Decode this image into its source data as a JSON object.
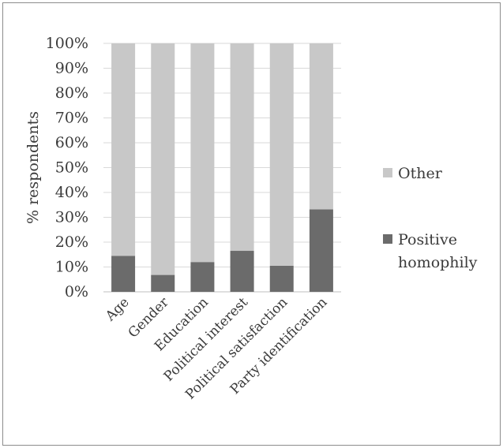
{
  "chart_data": {
    "type": "bar",
    "stacked": true,
    "percent_stacked": true,
    "categories": [
      "Age",
      "Gender",
      "Education",
      "Political interest",
      "Political satisfaction",
      "Party identification"
    ],
    "series": [
      {
        "name": "Positive homophily",
        "values": [
          14.5,
          6.8,
          12.0,
          16.5,
          10.5,
          33.2
        ],
        "color": "#6b6b6b"
      },
      {
        "name": "Other",
        "values": [
          85.5,
          93.2,
          88.0,
          83.5,
          89.5,
          66.8
        ],
        "color": "#c8c8c8"
      }
    ],
    "ylabel": "% respondents",
    "ylim": [
      0,
      100
    ],
    "yticks": [
      "0%",
      "10%",
      "20%",
      "30%",
      "40%",
      "50%",
      "60%",
      "70%",
      "80%",
      "90%",
      "100%"
    ],
    "grid": true,
    "legend": {
      "placement": "right",
      "entries": [
        {
          "series": 1,
          "lines": [
            "Other"
          ]
        },
        {
          "series": 0,
          "lines": [
            "Positive",
            "homophily"
          ]
        }
      ]
    }
  }
}
